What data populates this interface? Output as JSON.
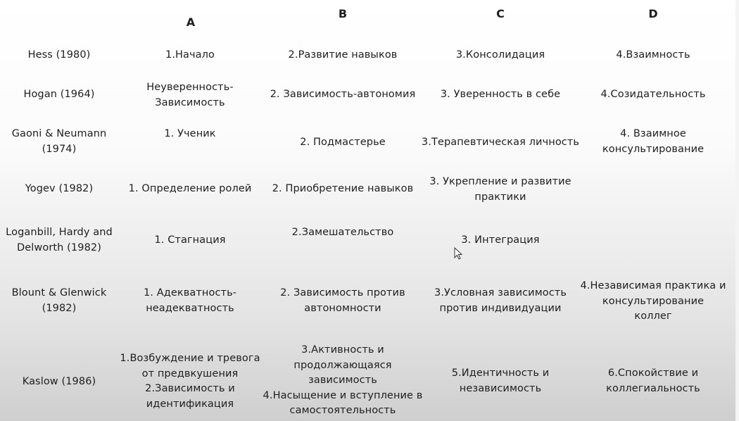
{
  "headers": [
    "A",
    "B",
    "C",
    "D"
  ],
  "rows": [
    {
      "author": "Hess (1980)",
      "a": "1.Начало",
      "b": "2.Развитие навыков",
      "c": "3.Консолидация",
      "d": "4.Взаимность"
    },
    {
      "author": "Hogan (1964)",
      "a": "Неуверенность-\nЗависимость",
      "b": "2. Зависимость-автономия",
      "c": "3. Уверенность в себе",
      "d": "4.Созидательность"
    },
    {
      "author": "Gaoni & Neumann\n(1974)",
      "a": "1. Ученик",
      "b": "2. Подмастерье",
      "c": "3.Терапевтическая личность",
      "d": "4. Взаимное\nконсультирование"
    },
    {
      "author": "Yogev (1982)",
      "a": "1. Определение ролей",
      "b": "2. Приобретение навыков",
      "c": "3. Укрепление и развитие\nпрактики",
      "d": ""
    },
    {
      "author": "Loganbill, Hardy and\nDelworth (1982)",
      "a": "1. Стагнация",
      "b": "2.Замешательство",
      "c": "3. Интеграция",
      "d": ""
    },
    {
      "author": "Blount & Glenwick\n(1982)",
      "a": "1. Адекватность-\nнеадекватность",
      "b": "2. Зависимость против\nавтономности",
      "c": "3.Условная зависимость\nпротив индивидуации",
      "d": "4.Независимая практика и\nконсультирование\nколлег"
    },
    {
      "author": "Kaslow (1986)",
      "a": "1.Возбуждение и тревога\nот предвкушения\n2.Зависимость и\nидентификация",
      "b": "3.Активность и\nпродолжающаяся\nзависимость\n4.Насыщение и вступление в\nсамостоятельность",
      "c": "5.Идентичность и\nнезависимость",
      "d": "6.Спокойствие и\nколлегиальность"
    }
  ]
}
